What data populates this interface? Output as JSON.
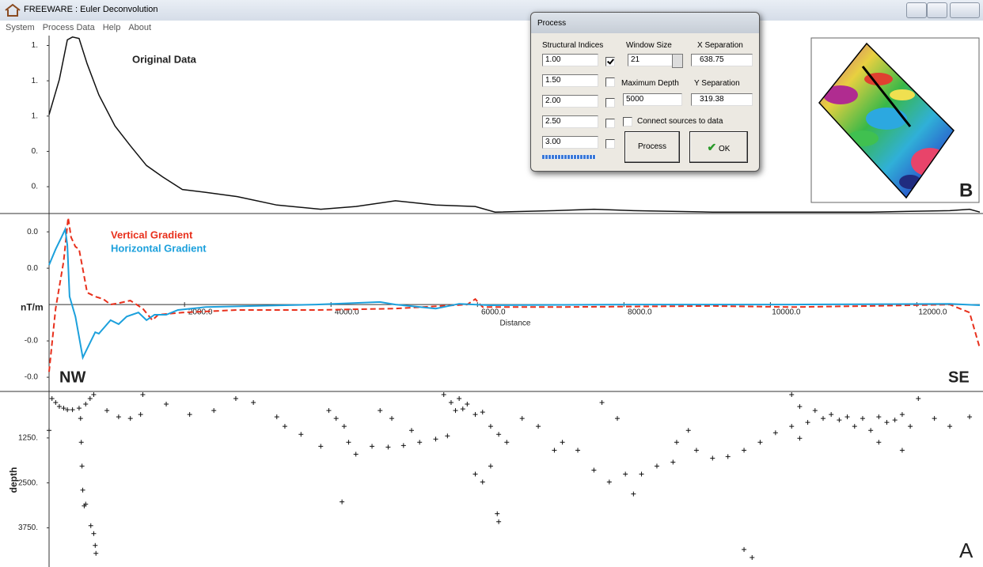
{
  "window": {
    "title": "FREEWARE : Euler Deconvolution",
    "menu": [
      "System",
      "Process Data",
      "Help",
      "About"
    ]
  },
  "chart_data": [
    {
      "type": "line",
      "series": [
        {
          "name": "Original Data",
          "color": "#111111",
          "x": [
            150,
            290,
            400,
            470,
            560,
            670,
            830,
            1050,
            1260,
            1480,
            1700,
            1970,
            2290,
            2720,
            3260,
            3860,
            4340,
            4880,
            5430,
            5970,
            6240,
            7050,
            7590,
            8130,
            9210,
            10290,
            11370,
            12450,
            12720,
            12860
          ],
          "values": [
            1.01,
            1.26,
            1.54,
            1.56,
            1.55,
            1.37,
            1.15,
            0.93,
            0.79,
            0.65,
            0.57,
            0.48,
            0.46,
            0.43,
            0.37,
            0.34,
            0.36,
            0.4,
            0.37,
            0.36,
            0.32,
            0.33,
            0.34,
            0.33,
            0.32,
            0.32,
            0.32,
            0.33,
            0.34,
            0.32
          ]
        }
      ],
      "xlim": [
        150,
        12860
      ],
      "ylim": [
        0.31,
        1.57
      ],
      "yticks": [
        {
          "value": 1.5,
          "label": "1."
        },
        {
          "value": 1.25,
          "label": "1."
        },
        {
          "value": 1.0,
          "label": "1."
        },
        {
          "value": 0.75,
          "label": "0."
        },
        {
          "value": 0.5,
          "label": "0."
        }
      ]
    },
    {
      "type": "line",
      "x_label": "Distance",
      "y_label": "nT/m",
      "series": [
        {
          "name": "Vertical Gradient",
          "color": "#e8301c",
          "dash": true,
          "x": [
            150,
            240,
            350,
            410,
            450,
            510,
            560,
            610,
            670,
            780,
            890,
            990,
            1100,
            1260,
            1430,
            1560,
            1640,
            1970,
            2720,
            3800,
            4880,
            5860,
            5970,
            6070,
            7050,
            9210,
            10290,
            11370,
            12450,
            12720,
            12860
          ],
          "values": [
            -0.0185,
            -0.0011,
            0.012,
            0.0239,
            0.0185,
            0.0159,
            0.0152,
            0.0098,
            0.0033,
            0.0022,
            0.0015,
            0,
            0.0004,
            0.0011,
            -0.0011,
            -0.0043,
            -0.0028,
            -0.0022,
            -0.0015,
            -0.0015,
            -0.0011,
            0,
            0.0015,
            -0.0007,
            -0.0007,
            -0.0004,
            -0.0007,
            -0.0004,
            0,
            -0.0022,
            -0.012
          ]
        },
        {
          "name": "Horizontal Gradient",
          "color": "#1ca0dc",
          "dash": false,
          "x": [
            150,
            240,
            320,
            370,
            400,
            430,
            510,
            610,
            780,
            830,
            990,
            1100,
            1210,
            1370,
            1480,
            1590,
            1750,
            1910,
            2290,
            3800,
            4670,
            4880,
            5430,
            5750,
            6180,
            8130,
            10290,
            12450,
            12860
          ],
          "values": [
            0.0109,
            0.0152,
            0.0185,
            0.0207,
            0.0163,
            0.0022,
            -0.0033,
            -0.0146,
            -0.0076,
            -0.008,
            -0.0043,
            -0.0054,
            -0.0033,
            -0.0022,
            -0.0043,
            -0.0028,
            -0.0028,
            -0.0015,
            -0.0007,
            0,
            0.0007,
            0,
            -0.0011,
            0.0002,
            -0.0002,
            0,
            0,
            0.0002,
            -0.0002
          ]
        }
      ],
      "xlim": [
        150,
        12860
      ],
      "ylim": [
        -0.0239,
        0.0246
      ],
      "xticks": [
        {
          "value": 2000,
          "label": "2000.0"
        },
        {
          "value": 4000,
          "label": "4000.0"
        },
        {
          "value": 6000,
          "label": "6000.0"
        },
        {
          "value": 8000,
          "label": "8000.0"
        },
        {
          "value": 10000,
          "label": "10000.0"
        },
        {
          "value": 12000,
          "label": "12000.0"
        }
      ],
      "yticks": [
        {
          "value": 0.02,
          "label": "0.0"
        },
        {
          "value": 0.01,
          "label": "0.0"
        },
        {
          "value": -0.01,
          "label": "-0.0"
        },
        {
          "value": -0.02,
          "label": "-0.0"
        }
      ]
    },
    {
      "type": "scatter",
      "y_label": "depth",
      "y_inverted": true,
      "series": [
        {
          "color": "#111111",
          "x": [
            190,
            240,
            290,
            350,
            400,
            470,
            560,
            650,
            710,
            760,
            580,
            590,
            600,
            610,
            630,
            650,
            720,
            760,
            780,
            790,
            150,
            940,
            1100,
            1260,
            1400,
            1430,
            1750,
            2070,
            2400,
            2700,
            2940,
            3260,
            3370,
            3590,
            3860,
            3970,
            4070,
            4180,
            4240,
            4340,
            4560,
            4780,
            4990,
            5210,
            5430,
            5590,
            5700,
            5750,
            5860,
            5970,
            6180,
            6290,
            6400,
            5970,
            6070,
            6180,
            6270,
            6290,
            4150,
            4670,
            4830,
            5100,
            6610,
            6830,
            7050,
            7160,
            7370,
            7590,
            7800,
            8020,
            8130,
            8240,
            8450,
            8670,
            8990,
            9210,
            9420,
            9640,
            9860,
            10070,
            10290,
            10510,
            10720,
            10940,
            11150,
            11370,
            11590,
            11800,
            12020,
            10610,
            10830,
            11050,
            11260,
            11480,
            11700,
            11910,
            12240,
            12450,
            12720,
            9640,
            9750,
            8720,
            8880,
            7700,
            7910,
            10400,
            11480,
            11800,
            5540,
            5640,
            5800,
            6070,
            10290,
            10400
          ],
          "values": [
            155,
            265,
            375,
            420,
            465,
            465,
            420,
            309,
            155,
            44,
            707,
            1370,
            2033,
            2700,
            3140,
            3090,
            3690,
            3910,
            4240,
            4460,
            1039,
            486,
            663,
            707,
            597,
            44,
            309,
            597,
            486,
            155,
            265,
            663,
            928,
            1149,
            1481,
            486,
            707,
            928,
            1370,
            1702,
            1481,
            1503,
            1459,
            1370,
            1282,
            1193,
            486,
            155,
            309,
            597,
            928,
            1149,
            1370,
            2254,
            2475,
            2033,
            3359,
            3580,
            3028,
            486,
            707,
            1039,
            707,
            928,
            1591,
            1370,
            1591,
            2144,
            2475,
            2254,
            2807,
            2254,
            2033,
            1923,
            1591,
            1812,
            1768,
            1591,
            1370,
            1105,
            928,
            818,
            707,
            751,
            928,
            1039,
            818,
            597,
            155,
            486,
            597,
            663,
            707,
            663,
            751,
            928,
            707,
            928,
            663,
            4354,
            4575,
            1370,
            1039,
            265,
            707,
            1260,
            1370,
            1591,
            44,
            265,
            442,
            530,
            44,
            376
          ]
        }
      ],
      "xlim": [
        150,
        12860
      ],
      "ylim": [
        0,
        4840
      ],
      "yticks": [
        {
          "value": 1250,
          "label": "1250."
        },
        {
          "value": 2500,
          "label": "2500."
        },
        {
          "value": 3750,
          "label": "3750."
        }
      ]
    }
  ],
  "annotations": {
    "left": "NW",
    "right": "SE",
    "profile": "A",
    "map": "B"
  },
  "dialog": {
    "title": "Process",
    "structural_indices": {
      "label": "Structural Indices",
      "values": [
        "1.00",
        "1.50",
        "2.00",
        "2.50",
        "3.00"
      ],
      "checked": [
        true,
        false,
        false,
        false,
        false
      ]
    },
    "window_size": {
      "label": "Window Size",
      "value": "21"
    },
    "x_separation": {
      "label": "X Separation",
      "value": "638.75"
    },
    "maximum_depth": {
      "label": "Maximum Depth",
      "value": "5000"
    },
    "y_separation": {
      "label": "Y Separation",
      "value": "319.38"
    },
    "connect": {
      "label": "Connect sources to data",
      "checked": false
    },
    "buttons": [
      "Process",
      "OK"
    ]
  }
}
